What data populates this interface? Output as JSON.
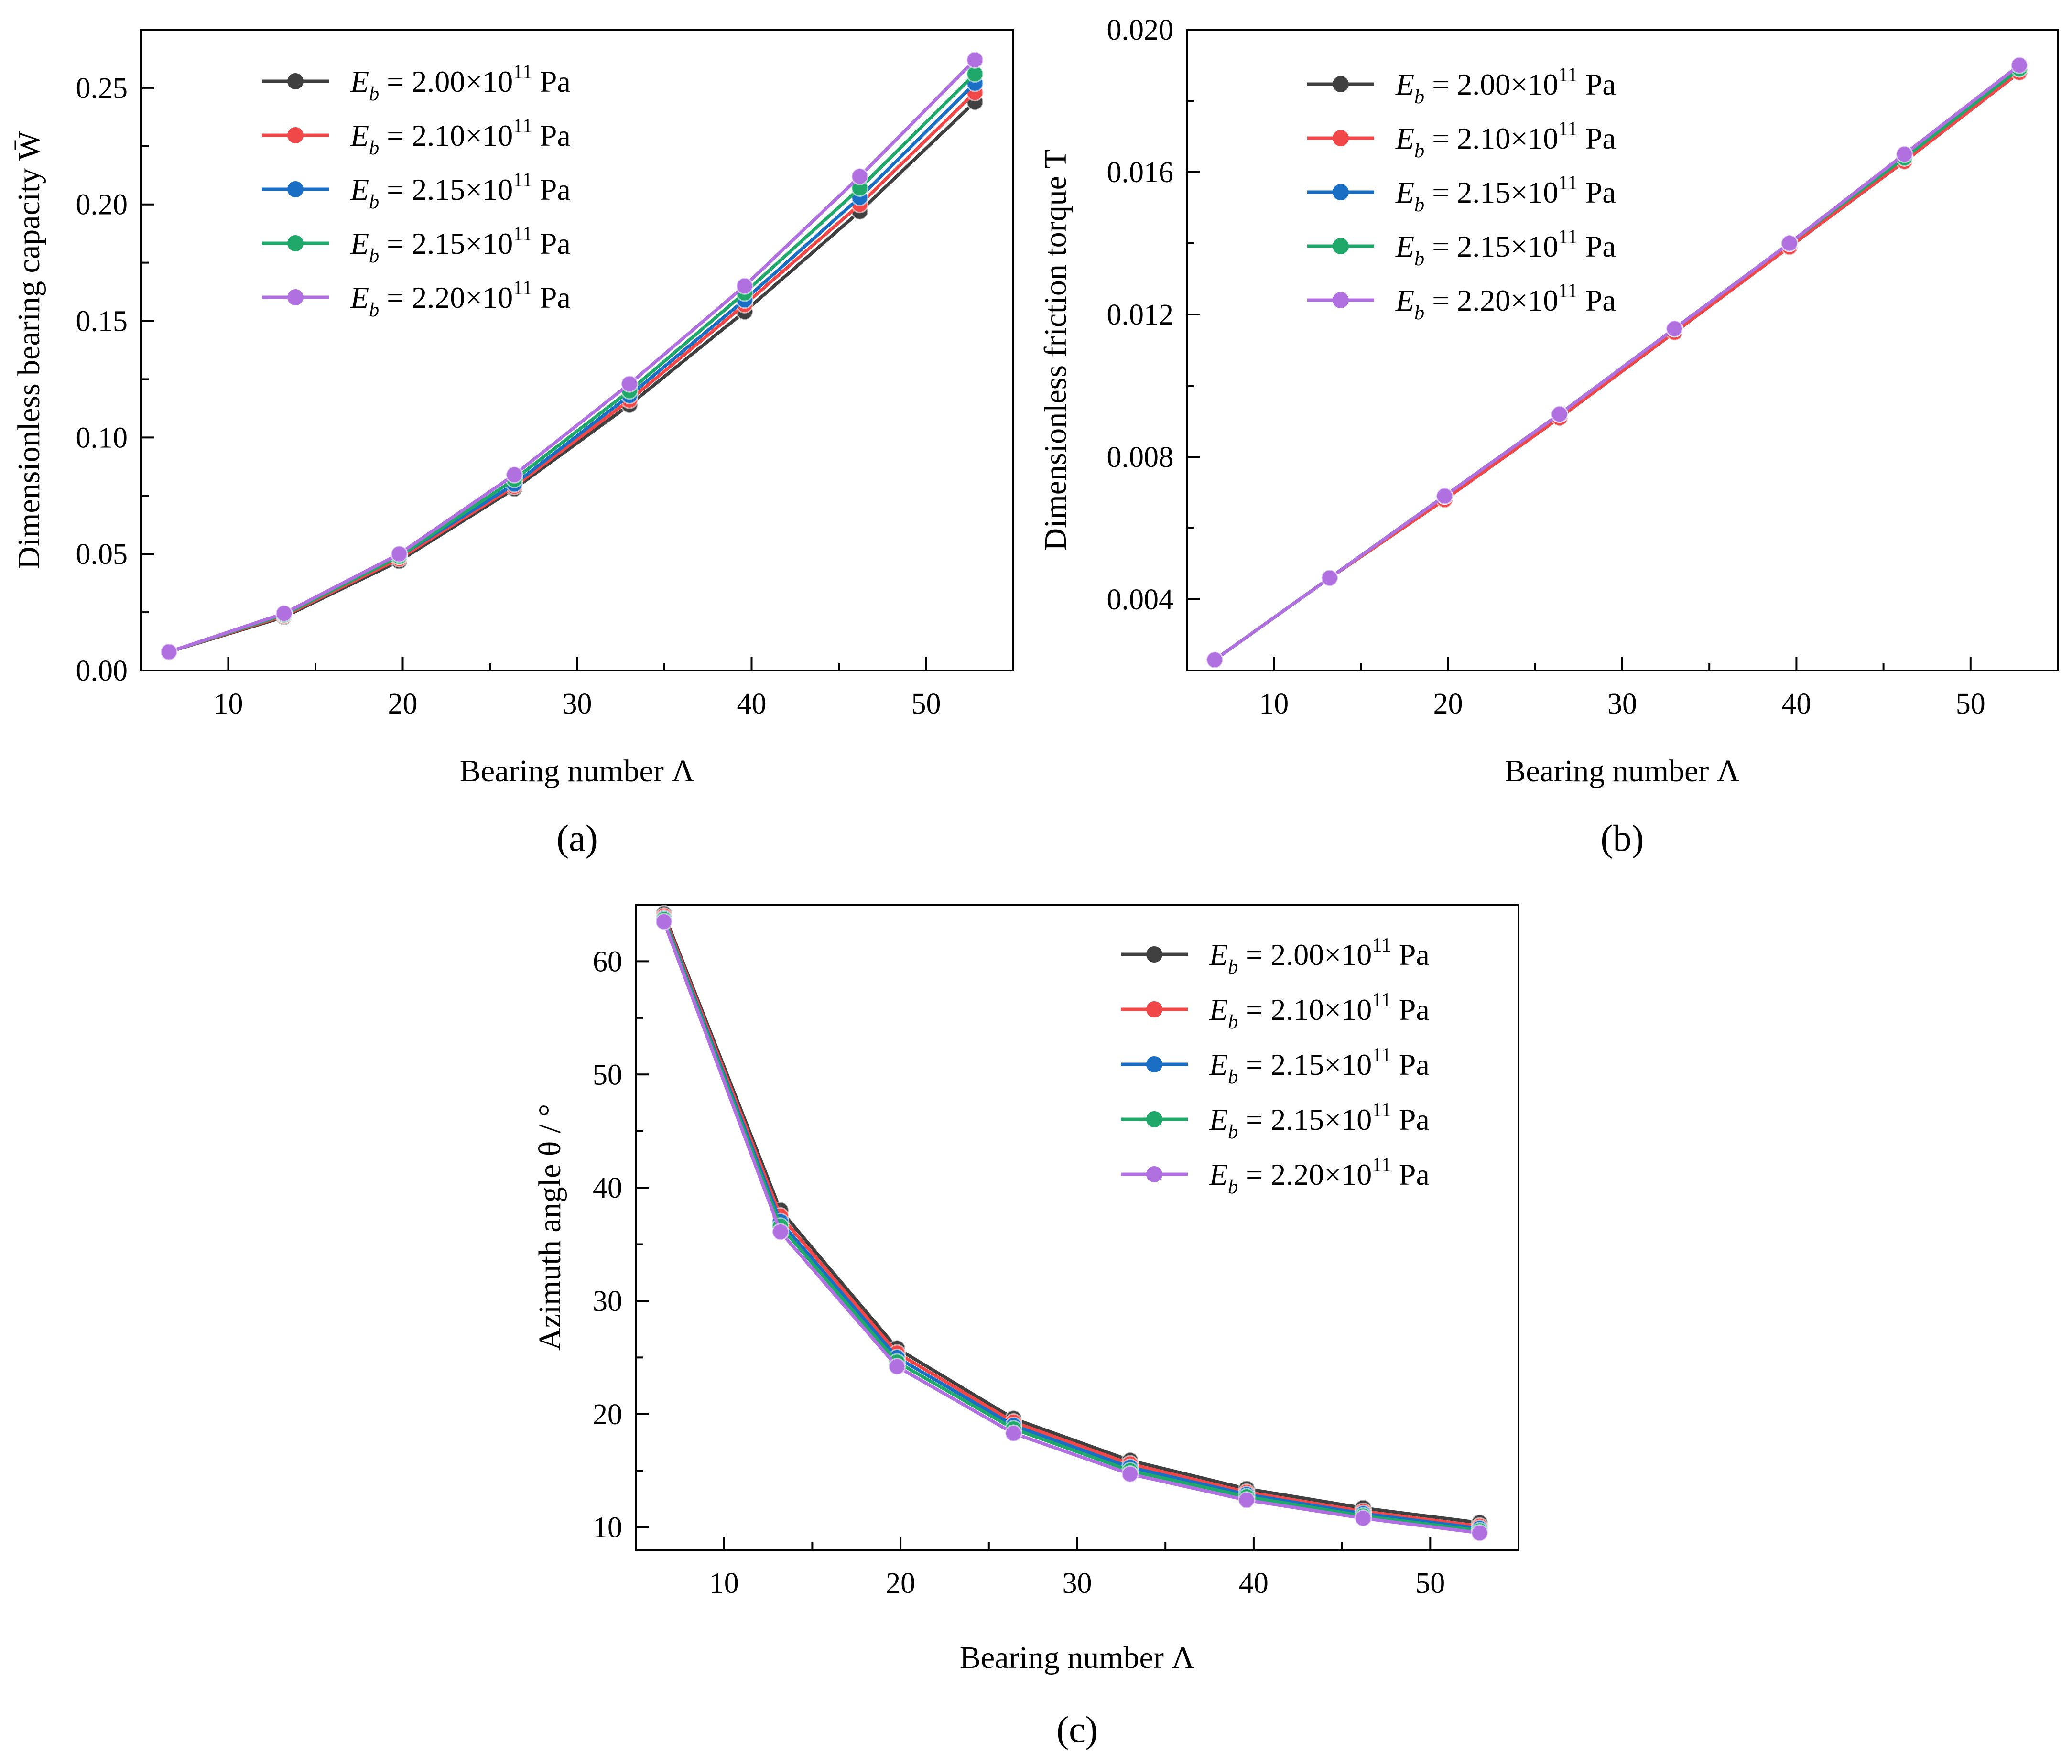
{
  "chart_data": [
    {
      "id": "a",
      "type": "line",
      "panel_label": "(a)",
      "xlabel": "Bearing number Λ",
      "ylabel": "Dimensionless bearing capacity W̄",
      "xlim": [
        5,
        55
      ],
      "ylim": [
        0,
        0.275
      ],
      "x_ticks": [
        10,
        20,
        30,
        40,
        50
      ],
      "x_tick_labels": [
        "10",
        "20",
        "30",
        "40",
        "50"
      ],
      "y_ticks": [
        0,
        0.05,
        0.1,
        0.15,
        0.2,
        0.25
      ],
      "y_tick_labels": [
        "0.00",
        "0.05",
        "0.10",
        "0.15",
        "0.20",
        "0.25"
      ],
      "legend_position": "top-left",
      "x": [
        6.6,
        13.2,
        19.8,
        26.4,
        33.0,
        39.6,
        46.2,
        52.8
      ],
      "series": [
        {
          "name": "E_b = 2.00×10^11 Pa",
          "legend_main": "2.00×10",
          "legend_exp": "11",
          "legend_unit": "Pa",
          "color": "#404040",
          "values": [
            0.008,
            0.023,
            0.047,
            0.078,
            0.114,
            0.154,
            0.197,
            0.244
          ]
        },
        {
          "name": "E_b = 2.10×10^11 Pa",
          "legend_main": "2.10×10",
          "legend_exp": "11",
          "legend_unit": "Pa",
          "color": "#f04848",
          "values": [
            0.008,
            0.0235,
            0.048,
            0.079,
            0.116,
            0.157,
            0.2,
            0.248
          ]
        },
        {
          "name": "E_b = 2.15×10^11 Pa",
          "legend_main": "2.15×10",
          "legend_exp": "11",
          "legend_unit": "Pa",
          "color": "#1a6fc4",
          "values": [
            0.008,
            0.024,
            0.049,
            0.08,
            0.118,
            0.159,
            0.203,
            0.252
          ]
        },
        {
          "name": "E_b = 2.15×10^11 Pa",
          "legend_main": "2.15×10",
          "legend_exp": "11",
          "legend_unit": "Pa",
          "color": "#1fa86a",
          "values": [
            0.008,
            0.024,
            0.049,
            0.082,
            0.12,
            0.162,
            0.207,
            0.256
          ]
        },
        {
          "name": "E_b = 2.20×10^11 Pa",
          "legend_main": "2.20×10",
          "legend_exp": "11",
          "legend_unit": "Pa",
          "color": "#b070e0",
          "values": [
            0.008,
            0.0245,
            0.05,
            0.084,
            0.123,
            0.165,
            0.212,
            0.262
          ]
        }
      ]
    },
    {
      "id": "b",
      "type": "line",
      "panel_label": "(b)",
      "xlabel": "Bearing number Λ",
      "ylabel": "Dimensionless friction torque T",
      "xlim": [
        5,
        55
      ],
      "ylim": [
        0.002,
        0.02
      ],
      "x_ticks": [
        10,
        20,
        30,
        40,
        50
      ],
      "x_tick_labels": [
        "10",
        "20",
        "30",
        "40",
        "50"
      ],
      "y_ticks": [
        0.004,
        0.008,
        0.012,
        0.016,
        0.02
      ],
      "y_tick_labels": [
        "0.004",
        "0.008",
        "0.012",
        "0.016",
        "0.020"
      ],
      "legend_position": "top-left",
      "x": [
        6.6,
        13.2,
        19.8,
        26.4,
        33.0,
        39.6,
        46.2,
        52.8
      ],
      "series": [
        {
          "name": "E_b = 2.00×10^11 Pa",
          "legend_main": "2.00×10",
          "legend_exp": "11",
          "legend_unit": "Pa",
          "color": "#404040",
          "values": [
            0.0023,
            0.0046,
            0.0068,
            0.0091,
            0.0115,
            0.0139,
            0.0163,
            0.0188
          ]
        },
        {
          "name": "E_b = 2.10×10^11 Pa",
          "legend_main": "2.10×10",
          "legend_exp": "11",
          "legend_unit": "Pa",
          "color": "#f04848",
          "values": [
            0.0023,
            0.0046,
            0.0068,
            0.0091,
            0.0115,
            0.0139,
            0.0163,
            0.0188
          ]
        },
        {
          "name": "E_b = 2.15×10^11 Pa",
          "legend_main": "2.15×10",
          "legend_exp": "11",
          "legend_unit": "Pa",
          "color": "#1a6fc4",
          "values": [
            0.0023,
            0.0046,
            0.0069,
            0.0092,
            0.0116,
            0.014,
            0.0164,
            0.0189
          ]
        },
        {
          "name": "E_b = 2.15×10^11 Pa",
          "legend_main": "2.15×10",
          "legend_exp": "11",
          "legend_unit": "Pa",
          "color": "#1fa86a",
          "values": [
            0.0023,
            0.0046,
            0.0069,
            0.0092,
            0.0116,
            0.014,
            0.0164,
            0.0189
          ]
        },
        {
          "name": "E_b = 2.20×10^11 Pa",
          "legend_main": "2.20×10",
          "legend_exp": "11",
          "legend_unit": "Pa",
          "color": "#b070e0",
          "values": [
            0.0023,
            0.0046,
            0.0069,
            0.0092,
            0.0116,
            0.014,
            0.0165,
            0.019
          ]
        }
      ]
    },
    {
      "id": "c",
      "type": "line",
      "panel_label": "(c)",
      "xlabel": "Bearing number Λ",
      "ylabel": "Azimuth angle θ / °",
      "xlim": [
        5,
        55
      ],
      "ylim": [
        8,
        65
      ],
      "x_ticks": [
        10,
        20,
        30,
        40,
        50
      ],
      "x_tick_labels": [
        "10",
        "20",
        "30",
        "40",
        "50"
      ],
      "y_ticks": [
        10,
        20,
        30,
        40,
        50,
        60
      ],
      "y_tick_labels": [
        "10",
        "20",
        "30",
        "40",
        "50",
        "60"
      ],
      "legend_position": "top-right",
      "x": [
        6.6,
        13.2,
        19.8,
        26.4,
        33.0,
        39.6,
        46.2,
        52.8
      ],
      "series": [
        {
          "name": "E_b = 2.00×10^11 Pa",
          "legend_main": "2.00×10",
          "legend_exp": "11",
          "legend_unit": "Pa",
          "color": "#404040",
          "values": [
            64.2,
            38.0,
            25.8,
            19.6,
            15.9,
            13.4,
            11.7,
            10.4
          ]
        },
        {
          "name": "E_b = 2.10×10^11 Pa",
          "legend_main": "2.10×10",
          "legend_exp": "11",
          "legend_unit": "Pa",
          "color": "#f04848",
          "values": [
            64.0,
            37.5,
            25.4,
            19.3,
            15.6,
            13.1,
            11.4,
            10.1
          ]
        },
        {
          "name": "E_b = 2.15×10^11 Pa",
          "legend_main": "2.15×10",
          "legend_exp": "11",
          "legend_unit": "Pa",
          "color": "#1a6fc4",
          "values": [
            63.8,
            37.0,
            25.0,
            19.0,
            15.3,
            12.9,
            11.2,
            9.9
          ]
        },
        {
          "name": "E_b = 2.15×10^11 Pa",
          "legend_main": "2.15×10",
          "legend_exp": "11",
          "legend_unit": "Pa",
          "color": "#1fa86a",
          "values": [
            63.7,
            36.6,
            24.6,
            18.7,
            15.0,
            12.7,
            11.0,
            9.7
          ]
        },
        {
          "name": "E_b = 2.20×10^11 Pa",
          "legend_main": "2.20×10",
          "legend_exp": "11",
          "legend_unit": "Pa",
          "color": "#b070e0",
          "values": [
            63.5,
            36.1,
            24.2,
            18.3,
            14.7,
            12.4,
            10.8,
            9.5
          ]
        }
      ]
    }
  ]
}
